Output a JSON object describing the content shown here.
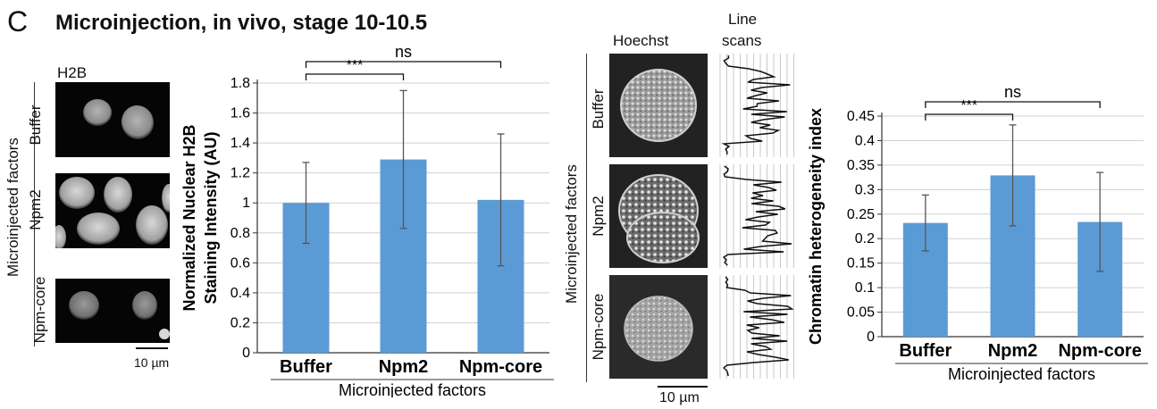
{
  "panel_letter": "C",
  "title": "Microinjection, in vivo, stage 10-10.5",
  "left_images": {
    "header": "H2B",
    "group_label": "Microinjected factors",
    "rows": [
      "Buffer",
      "Npm2",
      "Npm-core"
    ],
    "scale_bar": "10 µm"
  },
  "right_images": {
    "col_headers": [
      "Hoechst",
      "Line",
      "scans"
    ],
    "group_label": "Microinjected factors",
    "rows": [
      "Buffer",
      "Npm2",
      "Npm-core"
    ],
    "scale_bar": "10 µm"
  },
  "colors": {
    "bar": "#5b9bd5",
    "grid": "#d0d0d0",
    "axis": "#333333"
  },
  "chart_data": [
    {
      "type": "bar",
      "categories": [
        "Buffer",
        "Npm2",
        "Npm-core"
      ],
      "values": [
        1.0,
        1.29,
        1.02
      ],
      "error": [
        0.27,
        0.46,
        0.44
      ],
      "ylabel_lines": [
        "Normalized Nuclear H2B",
        "Staining Intensity (AU)"
      ],
      "xlabel": "Microinjected factors",
      "ylim": [
        0,
        1.8
      ],
      "yticks": [
        0,
        0.2,
        0.4,
        0.6,
        0.8,
        1,
        1.2,
        1.4,
        1.6,
        1.8
      ],
      "ytick_labels": [
        "0",
        "0.2",
        "0.4",
        "0.6",
        "0.8",
        "1",
        "1.2",
        "1.4",
        "1.6",
        "1.8"
      ],
      "grid": true,
      "significance": [
        {
          "from": 0,
          "to": 2,
          "label": "ns"
        },
        {
          "from": 0,
          "to": 1,
          "label": "***"
        }
      ]
    },
    {
      "type": "bar",
      "categories": [
        "Buffer",
        "Npm2",
        "Npm-core"
      ],
      "values": [
        0.232,
        0.329,
        0.234
      ],
      "error": [
        0.057,
        0.103,
        0.101
      ],
      "ylabel_lines": [
        "Chromatin heterogeneity index"
      ],
      "xlabel": "Microinjected factors",
      "ylim": [
        0,
        0.45
      ],
      "yticks": [
        0,
        0.05,
        0.1,
        0.15,
        0.2,
        0.25,
        0.3,
        0.35,
        0.4,
        0.45
      ],
      "ytick_labels": [
        "0",
        "0.05",
        "0.1",
        "0.15",
        "0.2",
        "0.25",
        "0.3",
        "0.35",
        "0.4",
        "0.45"
      ],
      "grid": true,
      "significance": [
        {
          "from": 0,
          "to": 2,
          "label": "ns"
        },
        {
          "from": 0,
          "to": 1,
          "label": "***"
        }
      ]
    }
  ]
}
